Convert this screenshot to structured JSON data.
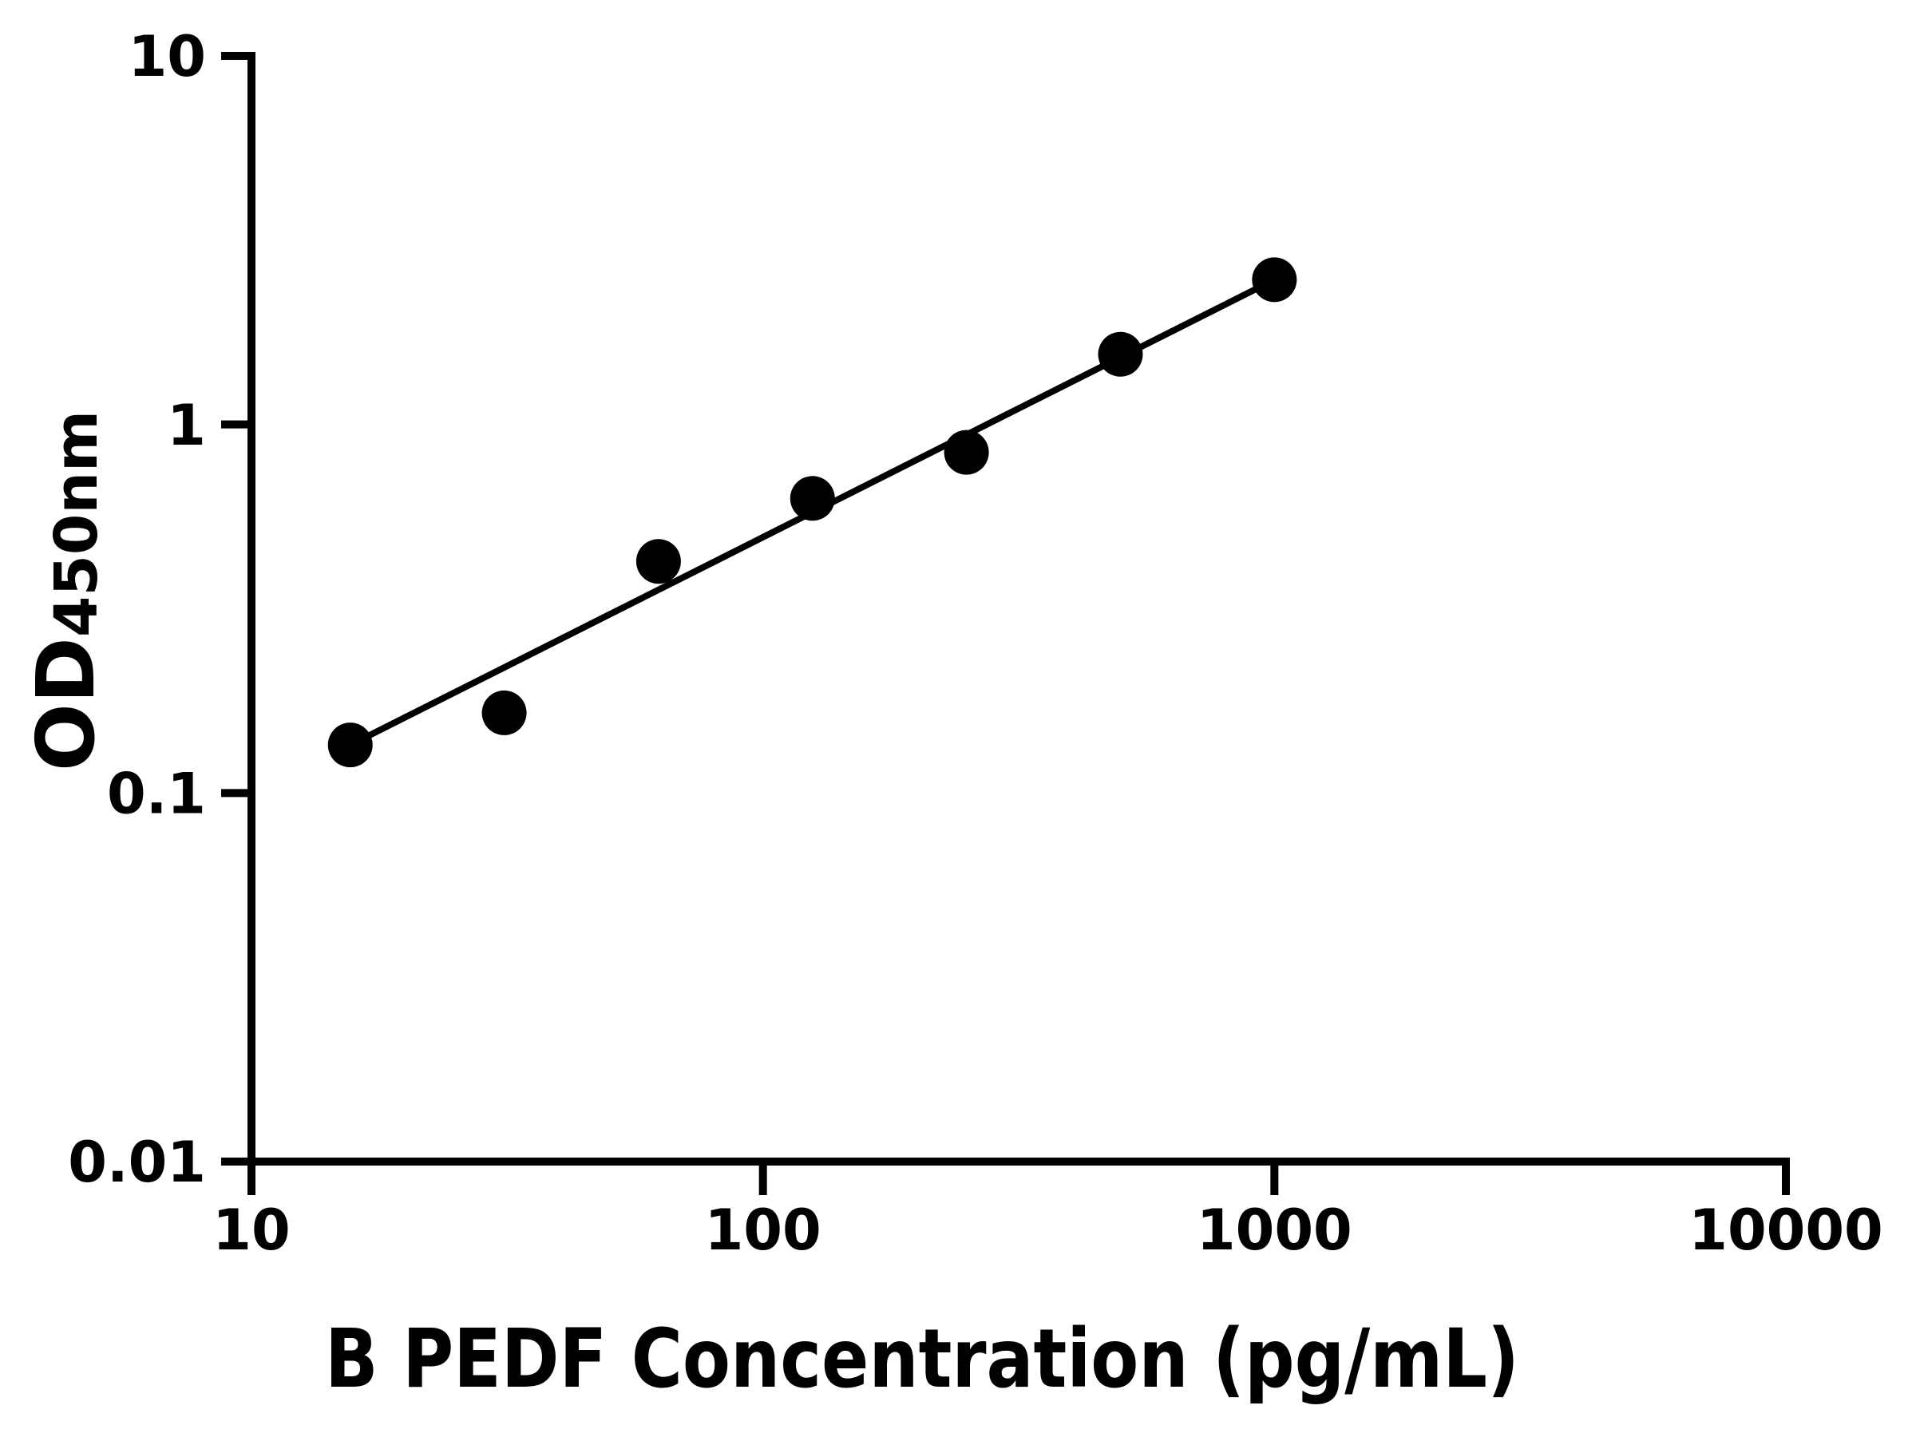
{
  "figure": {
    "background_color": "#ffffff",
    "foreground_color": "#000000"
  },
  "chart_data": {
    "type": "scatter",
    "title": "",
    "xlabel": "B PEDF Concentration (pg/mL)",
    "ylabel": "OD450nm",
    "ylabel_main": "OD",
    "ylabel_sub": "450nm",
    "x_scale": "log",
    "y_scale": "log",
    "xlim": [
      10,
      10000
    ],
    "ylim": [
      0.01,
      10
    ],
    "grid": false,
    "legend": false,
    "x_ticks": [
      {
        "value": 10,
        "label": "10"
      },
      {
        "value": 100,
        "label": "100"
      },
      {
        "value": 1000,
        "label": "1000"
      },
      {
        "value": 10000,
        "label": "10000"
      }
    ],
    "y_ticks": [
      {
        "value": 10,
        "label": "10"
      },
      {
        "value": 1,
        "label": "1"
      },
      {
        "value": 0.1,
        "label": "0.1"
      },
      {
        "value": 0.01,
        "label": "0.01"
      }
    ],
    "series": [
      {
        "name": "fit-line",
        "type": "line",
        "color": "#000000",
        "points": [
          {
            "x": 15.6,
            "y": 0.135
          },
          {
            "x": 1000,
            "y": 2.47
          }
        ]
      },
      {
        "name": "standard-points",
        "type": "scatter",
        "marker": "circle",
        "color": "#000000",
        "points": [
          {
            "x": 15.6,
            "y": 0.135
          },
          {
            "x": 31.2,
            "y": 0.165
          },
          {
            "x": 62.5,
            "y": 0.425
          },
          {
            "x": 125,
            "y": 0.63
          },
          {
            "x": 250,
            "y": 0.84
          },
          {
            "x": 500,
            "y": 1.55
          },
          {
            "x": 1000,
            "y": 2.47
          }
        ]
      }
    ]
  }
}
